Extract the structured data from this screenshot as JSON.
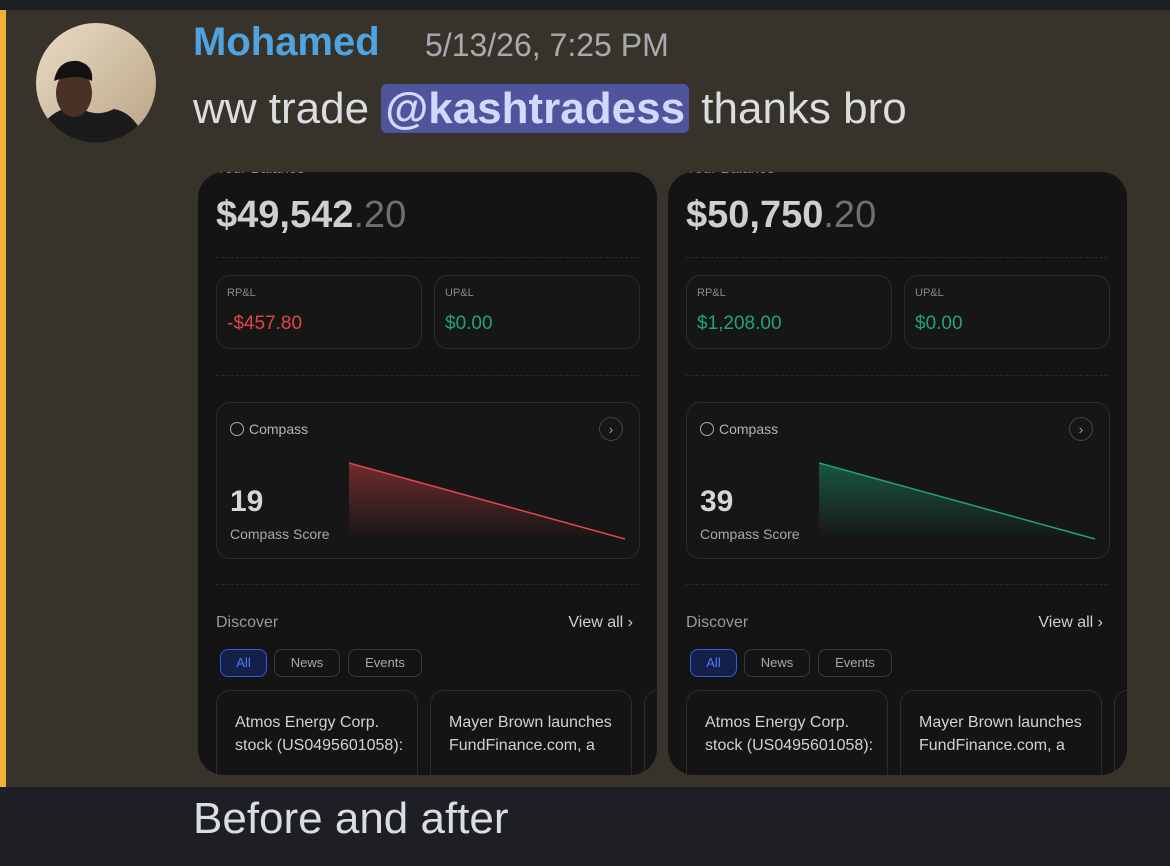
{
  "message": {
    "author": "Mohamed",
    "timestamp": "5/13/26, 7:25 PM",
    "text_before": "ww trade",
    "mention": "@kashtradess",
    "text_after": "thanks bro",
    "follow_up": "Before and after"
  },
  "screenshots": [
    {
      "balance_label": "Your Balance",
      "balance_main": "$49,542",
      "balance_cents": ".20",
      "rpl_label": "RP&L",
      "rpl_value": "-$457.80",
      "upl_label": "UP&L",
      "upl_value": "$0.00",
      "compass_label": "Compass",
      "score": "19",
      "score_label": "Compass Score",
      "discover": "Discover",
      "view_all": "View all",
      "tabs": [
        "All",
        "News",
        "Events"
      ],
      "cards": [
        "Atmos Energy Corp. stock (US0495601058):",
        "Mayer Brown launches FundFinance.com, a"
      ]
    },
    {
      "balance_label": "Your Balance",
      "balance_main": "$50,750",
      "balance_cents": ".20",
      "rpl_label": "RP&L",
      "rpl_value": "$1,208.00",
      "upl_label": "UP&L",
      "upl_value": "$0.00",
      "compass_label": "Compass",
      "score": "39",
      "score_label": "Compass Score",
      "discover": "Discover",
      "view_all": "View all",
      "tabs": [
        "All",
        "News",
        "Events"
      ],
      "cards": [
        "Atmos Energy Corp. stock (US0495601058):",
        "Mayer Brown launches FundFinance.com, a"
      ]
    }
  ]
}
